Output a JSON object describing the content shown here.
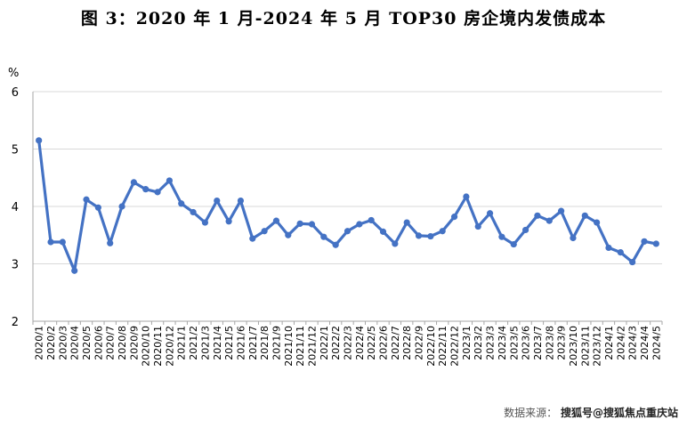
{
  "chart_data": {
    "type": "line",
    "title": "图 3：2020 年 1 月-2024 年 5 月 TOP30 房企境内发债成本",
    "ylabel": "%",
    "ylim": [
      2,
      6
    ],
    "yticks": [
      2,
      3,
      4,
      5,
      6
    ],
    "grid": true,
    "line_color": "#4472C4",
    "categories": [
      "2020/1",
      "2020/2",
      "2020/3",
      "2020/4",
      "2020/5",
      "2020/6",
      "2020/7",
      "2020/8",
      "2020/9",
      "2020/10",
      "2020/11",
      "2020/12",
      "2021/1",
      "2021/2",
      "2021/3",
      "2021/4",
      "2021/5",
      "2021/6",
      "2021/7",
      "2021/8",
      "2021/9",
      "2021/10",
      "2021/11",
      "2021/12",
      "2022/1",
      "2022/2",
      "2022/3",
      "2022/4",
      "2022/5",
      "2022/6",
      "2022/7",
      "2022/8",
      "2022/9",
      "2022/10",
      "2022/11",
      "2022/12",
      "2023/1",
      "2023/2",
      "2023/3",
      "2023/4",
      "2023/5",
      "2023/6",
      "2023/7",
      "2023/8",
      "2023/9",
      "2023/10",
      "2023/11",
      "2023/12",
      "2024/1",
      "2024/2",
      "2024/3",
      "2024/4",
      "2024/5"
    ],
    "series": [
      {
        "values": [
          5.15,
          3.38,
          3.38,
          2.88,
          4.12,
          3.98,
          3.36,
          4.0,
          4.42,
          4.3,
          4.25,
          4.45,
          4.05,
          3.9,
          3.72,
          4.1,
          3.74,
          4.1,
          3.44,
          3.57,
          3.75,
          3.5,
          3.7,
          3.69,
          3.47,
          3.33,
          3.57,
          3.69,
          3.76,
          3.56,
          3.35,
          3.72,
          3.49,
          3.48,
          3.57,
          3.82,
          4.17,
          3.65,
          3.88,
          3.47,
          3.34,
          3.59,
          3.84,
          3.75,
          3.92,
          3.45,
          3.84,
          3.72,
          3.28,
          3.2,
          3.03,
          3.39,
          3.35
        ]
      }
    ]
  },
  "source": {
    "label": "数据来源：",
    "brand": "搜狐号@搜狐焦点重庆站"
  }
}
